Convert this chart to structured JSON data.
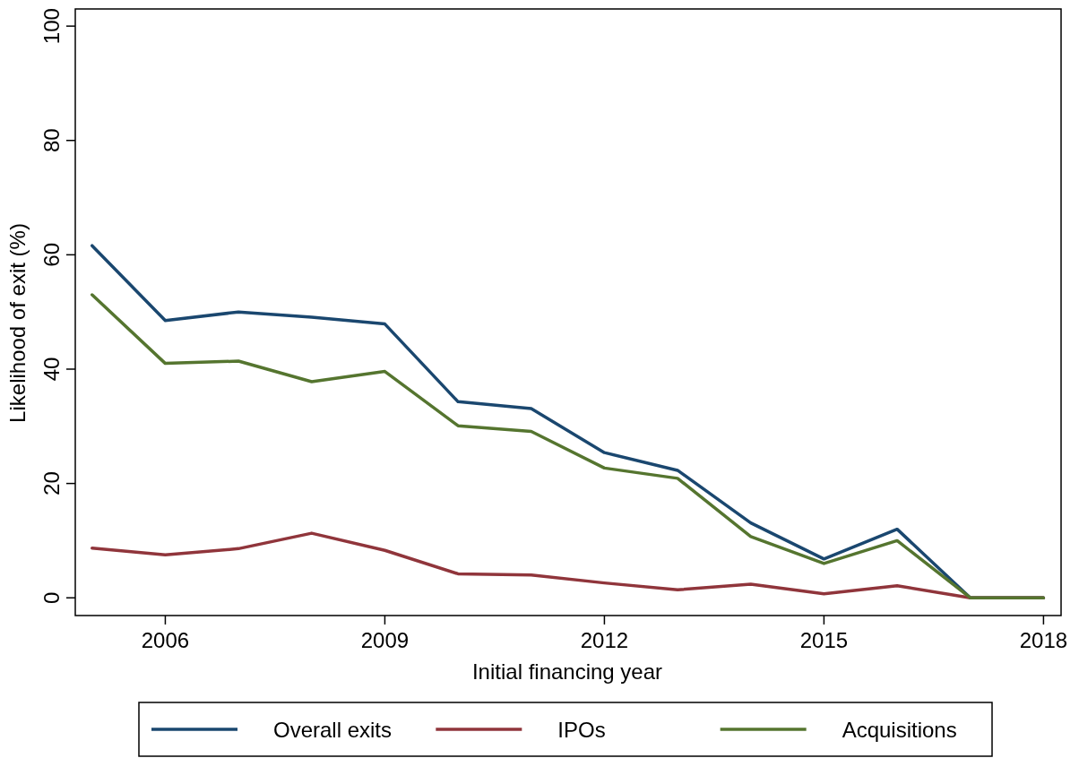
{
  "chart_data": {
    "type": "line",
    "xlabel": "Initial financing year",
    "ylabel": "Likelihood of exit (%)",
    "x": [
      2005,
      2006,
      2007,
      2008,
      2009,
      2010,
      2011,
      2012,
      2013,
      2014,
      2015,
      2016,
      2017,
      2018
    ],
    "series": [
      {
        "name": "Overall exits",
        "color": "#1a476f",
        "values": [
          61.6,
          48.5,
          50,
          49.1,
          47.9,
          34.3,
          33.1,
          25.4,
          22.3,
          13.1,
          6.8,
          12,
          0,
          0
        ]
      },
      {
        "name": "IPOs",
        "color": "#90353b",
        "values": [
          8.7,
          7.5,
          8.6,
          11.3,
          8.3,
          4.2,
          4,
          2.6,
          1.4,
          2.4,
          0.7,
          2.1,
          0,
          0
        ]
      },
      {
        "name": "Acquisitions",
        "color": "#55752f",
        "values": [
          53,
          41,
          41.4,
          37.8,
          39.6,
          30.1,
          29.1,
          22.7,
          20.9,
          10.7,
          6,
          10,
          0,
          0
        ]
      }
    ],
    "xlim": [
      2004.77,
      2018.24
    ],
    "xticks": [
      2006,
      2009,
      2012,
      2015,
      2018
    ],
    "ylim": [
      -3.1,
      103
    ],
    "yticks": [
      0,
      20,
      40,
      60,
      80,
      100
    ],
    "grid": false,
    "legend": "bottom",
    "marker": "none",
    "line_style": "solid"
  }
}
